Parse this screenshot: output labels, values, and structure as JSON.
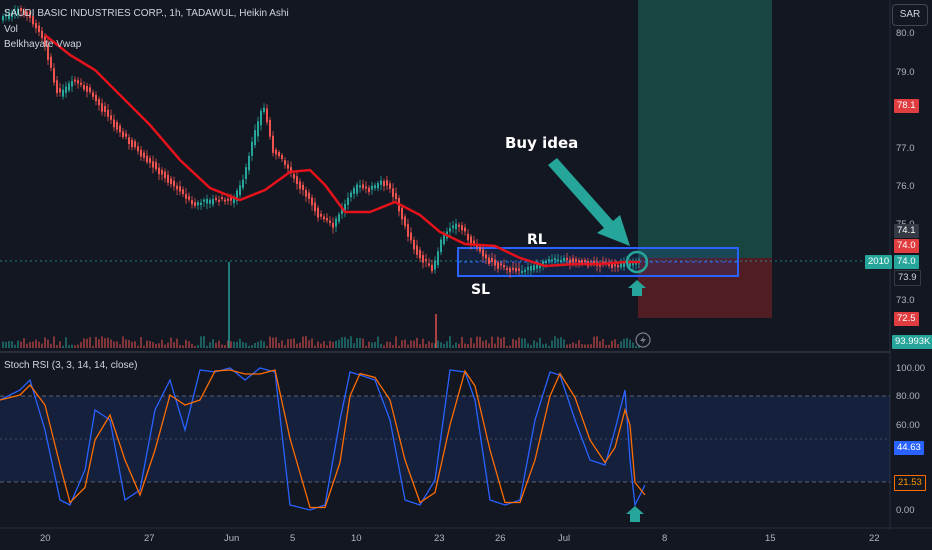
{
  "header": {
    "symbol_line": "SAUDI BASIC INDUSTRIES CORP., 1h, TADAWUL, Heikin Ashi",
    "indicator_vol": "Vol",
    "indicator_vwap": "Belkhayate Vwap"
  },
  "currency_button": "SAR",
  "price_axis": {
    "ticks": [
      "80.0",
      "79.0",
      "77.0",
      "76.0",
      "75.0",
      "73.0",
      "72.0"
    ],
    "tags": {
      "target": "78.1",
      "high": "74.1",
      "level_red": "74.0",
      "current_label": "2010",
      "current": "74.0",
      "low": "73.9",
      "stop": "72.5",
      "volume": "93.993K"
    }
  },
  "stoch_panel": {
    "title": "Stoch RSI (3, 3, 14, 14, close)",
    "ticks": [
      "100.00",
      "80.00",
      "60.00",
      "40.00",
      "0.00"
    ],
    "tag_k": "44.63",
    "tag_d": "21.53"
  },
  "time_axis": {
    "labels": [
      "20",
      "27",
      "Jun",
      "5",
      "10",
      "23",
      "26",
      "Jul",
      "8",
      "15",
      "22"
    ]
  },
  "annotations": {
    "buy_idea": "Buy idea",
    "rl": "RL",
    "sl": "SL"
  },
  "colors": {
    "background": "#131722",
    "up": "#26a69a",
    "down": "#ef5350",
    "vwap": "#e3121b",
    "box_blue": "#2962ff",
    "target_zone": "#1b4d45",
    "stop_zone": "#5c1e24",
    "stoch_k": "#2962ff",
    "stoch_d": "#ff6d00"
  }
}
